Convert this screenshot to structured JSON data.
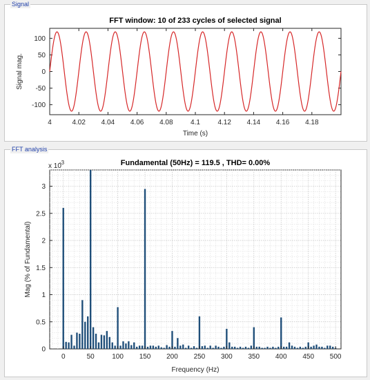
{
  "signal_panel": {
    "title": "Signal"
  },
  "fft_panel": {
    "title": "FFT analysis"
  },
  "colors": {
    "signal_line": "#d62728",
    "bar_fill": "#1f4e79",
    "panel_title": "#1f3fa8"
  },
  "chart_data": [
    {
      "type": "line",
      "title": "FFT window: 10 of 233 cycles of selected signal",
      "xlabel": "Time (s)",
      "ylabel": "Signal mag.",
      "xlim": [
        4,
        4.2
      ],
      "ylim": [
        -130,
        130
      ],
      "xticks": [
        4,
        4.02,
        4.04,
        4.06,
        4.08,
        4.1,
        4.12,
        4.14,
        4.16,
        4.18
      ],
      "xtick_labels": [
        "4",
        "4.02",
        "4.04",
        "4.06",
        "4.08",
        "4.1",
        "4.12",
        "4.14",
        "4.16",
        "4.18"
      ],
      "yticks": [
        100,
        50,
        0,
        -50,
        -100
      ],
      "ytick_labels": [
        "100",
        "50",
        "0",
        "-50",
        "-100"
      ],
      "grid": false,
      "series": [
        {
          "amplitude": 119.5,
          "frequency_hz": 50,
          "phase_deg": 0,
          "t_start": 4,
          "t_end": 4.2
        }
      ]
    },
    {
      "type": "bar",
      "title": "Fundamental (50Hz) = 119.5 , THD= 0.00%",
      "xlabel": "Frequency (Hz)",
      "ylabel": "Mag (% of Fundamental)",
      "y_exponent_label": "x 10",
      "y_exponent": "-3",
      "xlim": [
        -25,
        510
      ],
      "ylim": [
        0,
        0.0033
      ],
      "xticks": [
        0,
        50,
        100,
        150,
        200,
        250,
        300,
        350,
        400,
        450,
        500
      ],
      "xtick_labels": [
        "0",
        "50",
        "100",
        "150",
        "200",
        "250",
        "300",
        "350",
        "400",
        "450",
        "500"
      ],
      "yticks": [
        0,
        0.0005,
        0.001,
        0.0015,
        0.002,
        0.0025,
        0.003
      ],
      "ytick_labels": [
        "0",
        "0.5",
        "1",
        "1.5",
        "2",
        "2.5",
        "3"
      ],
      "grid": true,
      "bar_width_hz": 3,
      "freqs": [
        0,
        5,
        10,
        15,
        20,
        25,
        30,
        35,
        40,
        45,
        50,
        55,
        60,
        65,
        70,
        75,
        80,
        85,
        90,
        95,
        100,
        105,
        110,
        115,
        120,
        125,
        130,
        135,
        140,
        145,
        150,
        155,
        160,
        165,
        170,
        175,
        180,
        185,
        190,
        195,
        200,
        205,
        210,
        215,
        220,
        225,
        230,
        235,
        240,
        245,
        250,
        255,
        260,
        265,
        270,
        275,
        280,
        285,
        290,
        295,
        300,
        305,
        310,
        315,
        320,
        325,
        330,
        335,
        340,
        345,
        350,
        355,
        360,
        365,
        370,
        375,
        380,
        385,
        390,
        395,
        400,
        405,
        410,
        415,
        420,
        425,
        430,
        435,
        440,
        445,
        450,
        455,
        460,
        465,
        470,
        475,
        480,
        485,
        490,
        495,
        500
      ],
      "values": [
        0.0026,
        0.00013,
        0.00012,
        0.00026,
        6e-05,
        0.0003,
        0.00028,
        0.0009,
        0.0005,
        0.0006,
        0.0033,
        0.0004,
        0.00028,
        0.00012,
        0.00026,
        0.00025,
        0.00033,
        0.00022,
        0.00012,
        6e-05,
        0.00077,
        6e-05,
        0.00014,
        0.0001,
        0.00014,
        7e-05,
        0.00012,
        4e-05,
        6e-05,
        6e-05,
        0.00295,
        4e-05,
        6e-05,
        6e-05,
        4e-05,
        6e-05,
        3e-05,
        2e-05,
        7e-05,
        4e-05,
        0.00033,
        4e-05,
        0.0002,
        6e-05,
        8e-05,
        2e-05,
        6e-05,
        2e-05,
        5e-05,
        2e-05,
        0.0006,
        5e-05,
        6e-05,
        2e-05,
        6e-05,
        2e-05,
        6e-05,
        4e-05,
        2e-05,
        4e-05,
        0.00037,
        0.00012,
        4e-05,
        4e-05,
        2e-05,
        4e-05,
        2e-05,
        4e-05,
        2e-05,
        6e-05,
        0.0004,
        4e-05,
        4e-05,
        2e-05,
        2e-05,
        4e-05,
        2e-05,
        4e-05,
        2e-05,
        4e-05,
        0.00058,
        4e-05,
        4e-05,
        0.00012,
        6e-05,
        4e-05,
        2e-05,
        4e-05,
        2e-05,
        4e-05,
        0.00012,
        4e-05,
        6e-05,
        8e-05,
        4e-05,
        4e-05,
        2e-05,
        6e-05,
        6e-05,
        4e-05,
        2e-05
      ]
    }
  ]
}
